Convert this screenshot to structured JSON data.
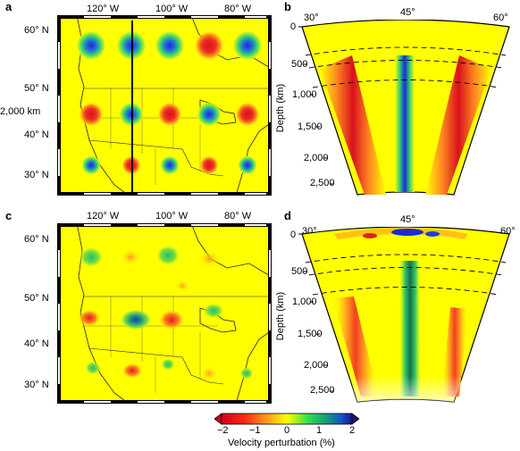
{
  "panels": {
    "a": {
      "letter": "a",
      "lon_ticks": [
        "120° W",
        "100° W",
        "80° W"
      ],
      "lat_ticks": [
        "60° N",
        "50° N",
        "40° N",
        "30° N"
      ],
      "scale_label": "2,000 km"
    },
    "b": {
      "letter": "b",
      "angle_ticks": [
        "30°",
        "45°",
        "60°"
      ],
      "depth_ticks": [
        "0",
        "500",
        "1,000",
        "1,500",
        "2,000",
        "2,500"
      ],
      "depth_label": "Depth (km)"
    },
    "c": {
      "letter": "c",
      "lon_ticks": [
        "120° W",
        "100° W",
        "80° W"
      ],
      "lat_ticks": [
        "60° N",
        "50° N",
        "40° N",
        "30° N"
      ]
    },
    "d": {
      "letter": "d",
      "angle_ticks": [
        "30°",
        "45°",
        "60°"
      ],
      "depth_ticks": [
        "0",
        "500",
        "1,000",
        "1,500",
        "2,000",
        "2,500"
      ],
      "depth_label": "Depth (km)"
    }
  },
  "colorbar": {
    "ticks": [
      "−2",
      "−1",
      "0",
      "1",
      "2"
    ],
    "label": "Velocity perturbation (%)",
    "colors": [
      "#d0001c",
      "#ff2a10",
      "#ff9a20",
      "#ffff00",
      "#33e04a",
      "#11a07a",
      "#1550c8",
      "#1b1580"
    ]
  },
  "colors": {
    "background": "#ffff00",
    "slow": "#e8201a",
    "fast": "#1a3ae0"
  }
}
